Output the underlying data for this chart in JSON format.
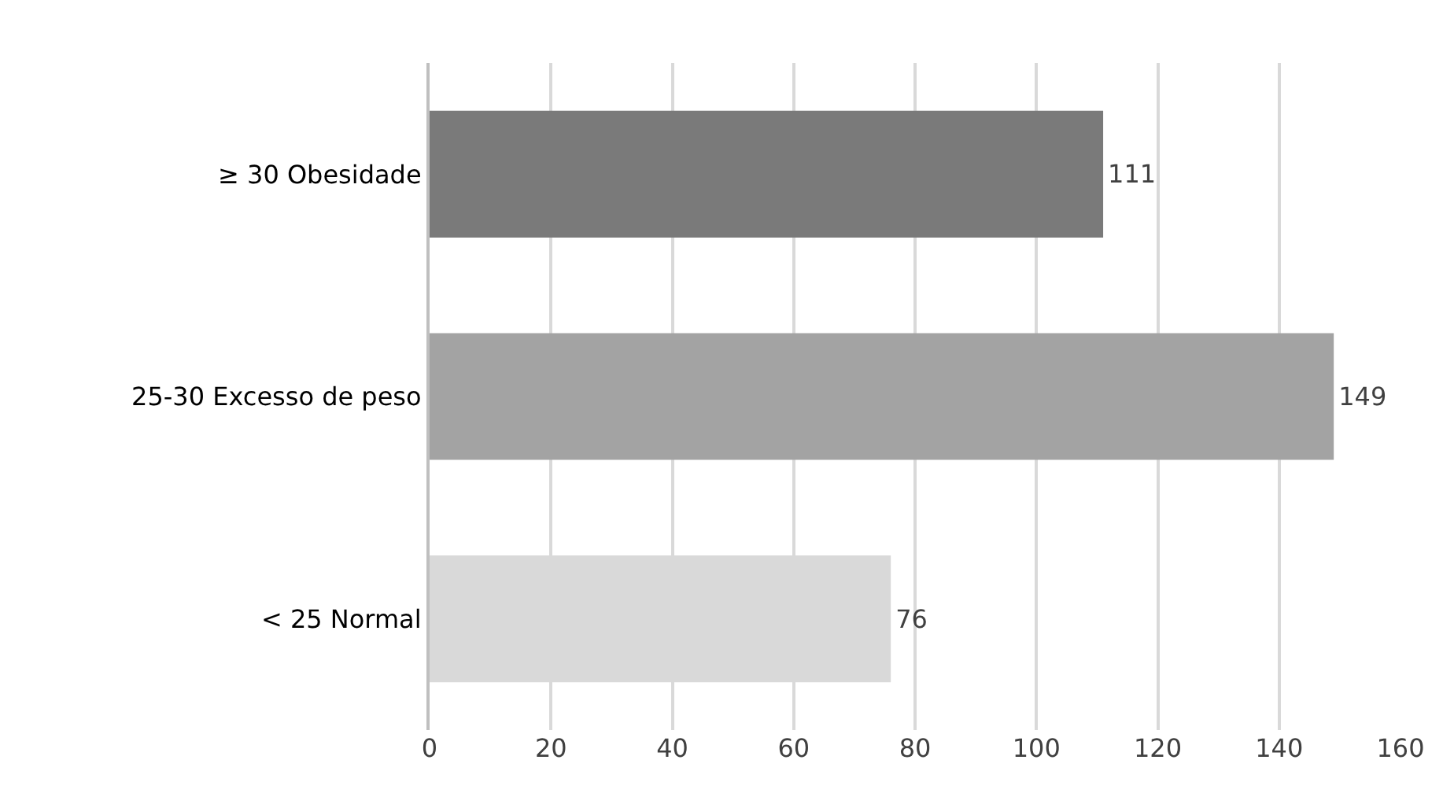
{
  "chart_data": {
    "type": "bar",
    "orientation": "horizontal",
    "categories": [
      "≥ 30 Obesidade",
      "25-30 Excesso de peso",
      "< 25 Normal"
    ],
    "values": [
      111,
      149,
      76
    ],
    "colors": [
      "#7a7a7a",
      "#a3a3a3",
      "#d9d9d9"
    ],
    "xlim": [
      0,
      160
    ],
    "xticks": [
      0,
      20,
      40,
      60,
      80,
      100,
      120,
      140,
      160
    ],
    "grid": "x",
    "data_labels": true
  }
}
